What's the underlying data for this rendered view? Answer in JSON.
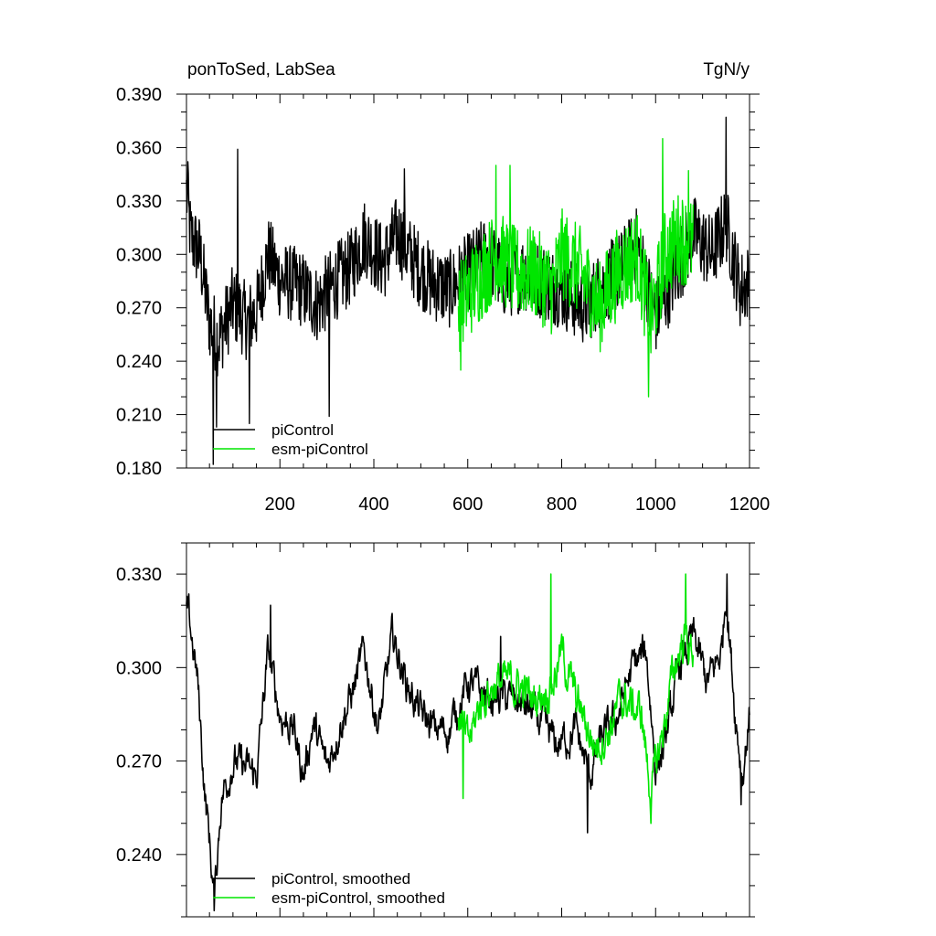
{
  "chart_data": [
    {
      "type": "line",
      "title_left": "ponToSed, LabSea",
      "title_right": "TgN/y",
      "xlabel": "",
      "ylabel": "",
      "xlim": [
        1,
        1200
      ],
      "ylim": [
        0.18,
        0.39
      ],
      "x_ticks": [
        200,
        400,
        600,
        800,
        1000,
        1200
      ],
      "y_ticks": [
        "0.180",
        "0.210",
        "0.240",
        "0.270",
        "0.300",
        "0.330",
        "0.360",
        "0.390"
      ],
      "grid": false,
      "legend_position": "bottom-left",
      "series": [
        {
          "name": "piControl",
          "color": "#000000",
          "x_range": [
            1,
            1200
          ],
          "anchors": [
            [
              1,
              0.335
            ],
            [
              10,
              0.31
            ],
            [
              30,
              0.3
            ],
            [
              50,
              0.262
            ],
            [
              70,
              0.252
            ],
            [
              100,
              0.272
            ],
            [
              130,
              0.262
            ],
            [
              150,
              0.268
            ],
            [
              175,
              0.3
            ],
            [
              200,
              0.286
            ],
            [
              240,
              0.282
            ],
            [
              280,
              0.272
            ],
            [
              320,
              0.285
            ],
            [
              350,
              0.292
            ],
            [
              380,
              0.31
            ],
            [
              420,
              0.295
            ],
            [
              450,
              0.312
            ],
            [
              480,
              0.298
            ],
            [
              520,
              0.285
            ],
            [
              560,
              0.28
            ],
            [
              600,
              0.29
            ],
            [
              640,
              0.3
            ],
            [
              680,
              0.285
            ],
            [
              720,
              0.29
            ],
            [
              760,
              0.285
            ],
            [
              800,
              0.28
            ],
            [
              850,
              0.27
            ],
            [
              880,
              0.28
            ],
            [
              920,
              0.29
            ],
            [
              960,
              0.305
            ],
            [
              1000,
              0.265
            ],
            [
              1040,
              0.288
            ],
            [
              1080,
              0.312
            ],
            [
              1120,
              0.3
            ],
            [
              1150,
              0.318
            ],
            [
              1180,
              0.28
            ],
            [
              1200,
              0.285
            ]
          ],
          "noise": 0.022,
          "spikes": [
            [
              4,
              0.352
            ],
            [
              58,
              0.182
            ],
            [
              65,
              0.203
            ],
            [
              110,
              0.359
            ],
            [
              135,
              0.205
            ],
            [
              305,
              0.209
            ],
            [
              465,
              0.348
            ],
            [
              1150,
              0.377
            ]
          ]
        },
        {
          "name": "esm-piControl",
          "color": "#00e600",
          "x_range": [
            580,
            1080
          ],
          "anchors": [
            [
              580,
              0.27
            ],
            [
              620,
              0.285
            ],
            [
              660,
              0.3
            ],
            [
              700,
              0.29
            ],
            [
              740,
              0.29
            ],
            [
              780,
              0.28
            ],
            [
              800,
              0.3
            ],
            [
              840,
              0.29
            ],
            [
              880,
              0.27
            ],
            [
              920,
              0.29
            ],
            [
              960,
              0.3
            ],
            [
              990,
              0.262
            ],
            [
              1020,
              0.3
            ],
            [
              1050,
              0.31
            ],
            [
              1080,
              0.305
            ]
          ],
          "noise": 0.026,
          "spikes": [
            [
              585,
              0.235
            ],
            [
              660,
              0.35
            ],
            [
              690,
              0.35
            ],
            [
              985,
              0.22
            ],
            [
              1015,
              0.365
            ],
            [
              1070,
              0.347
            ]
          ]
        }
      ]
    },
    {
      "type": "line",
      "xlabel": "",
      "ylabel": "",
      "xlim": [
        1,
        1200
      ],
      "ylim": [
        0.22,
        0.34
      ],
      "y_ticks": [
        "0.240",
        "0.270",
        "0.300",
        "0.330"
      ],
      "grid": false,
      "legend_position": "bottom-left",
      "series": [
        {
          "name": "piControl, smoothed",
          "color": "#000000",
          "x_range": [
            1,
            1200
          ],
          "anchors": [
            [
              1,
              0.32
            ],
            [
              12,
              0.31
            ],
            [
              25,
              0.295
            ],
            [
              40,
              0.26
            ],
            [
              50,
              0.245
            ],
            [
              60,
              0.225
            ],
            [
              75,
              0.258
            ],
            [
              100,
              0.27
            ],
            [
              125,
              0.268
            ],
            [
              150,
              0.265
            ],
            [
              175,
              0.305
            ],
            [
              200,
              0.285
            ],
            [
              230,
              0.28
            ],
            [
              250,
              0.265
            ],
            [
              270,
              0.282
            ],
            [
              300,
              0.268
            ],
            [
              330,
              0.283
            ],
            [
              350,
              0.29
            ],
            [
              380,
              0.305
            ],
            [
              410,
              0.28
            ],
            [
              440,
              0.31
            ],
            [
              470,
              0.295
            ],
            [
              500,
              0.285
            ],
            [
              530,
              0.28
            ],
            [
              560,
              0.28
            ],
            [
              600,
              0.295
            ],
            [
              650,
              0.29
            ],
            [
              700,
              0.29
            ],
            [
              740,
              0.285
            ],
            [
              790,
              0.275
            ],
            [
              830,
              0.28
            ],
            [
              860,
              0.265
            ],
            [
              880,
              0.275
            ],
            [
              920,
              0.285
            ],
            [
              950,
              0.3
            ],
            [
              980,
              0.305
            ],
            [
              1000,
              0.268
            ],
            [
              1020,
              0.275
            ],
            [
              1050,
              0.3
            ],
            [
              1080,
              0.31
            ],
            [
              1110,
              0.295
            ],
            [
              1140,
              0.305
            ],
            [
              1150,
              0.325
            ],
            [
              1170,
              0.285
            ],
            [
              1185,
              0.265
            ],
            [
              1200,
              0.285
            ]
          ],
          "noise": 0.0075,
          "spikes": [
            [
              60,
              0.222
            ],
            [
              180,
              0.32
            ],
            [
              670,
              0.31
            ],
            [
              1152,
              0.33
            ],
            [
              1182,
              0.256
            ],
            [
              855,
              0.247
            ]
          ]
        },
        {
          "name": "esm-piControl, smoothed",
          "color": "#00e600",
          "x_range": [
            580,
            1080
          ],
          "anchors": [
            [
              580,
              0.285
            ],
            [
              600,
              0.275
            ],
            [
              630,
              0.29
            ],
            [
              660,
              0.295
            ],
            [
              700,
              0.295
            ],
            [
              740,
              0.29
            ],
            [
              780,
              0.295
            ],
            [
              800,
              0.305
            ],
            [
              830,
              0.29
            ],
            [
              870,
              0.275
            ],
            [
              900,
              0.28
            ],
            [
              930,
              0.29
            ],
            [
              970,
              0.285
            ],
            [
              990,
              0.26
            ],
            [
              1010,
              0.275
            ],
            [
              1040,
              0.3
            ],
            [
              1060,
              0.31
            ],
            [
              1080,
              0.305
            ]
          ],
          "noise": 0.0085,
          "spikes": [
            [
              590,
              0.258
            ],
            [
              777,
              0.33
            ],
            [
              990,
              0.25
            ],
            [
              1064,
              0.33
            ]
          ]
        }
      ]
    }
  ]
}
